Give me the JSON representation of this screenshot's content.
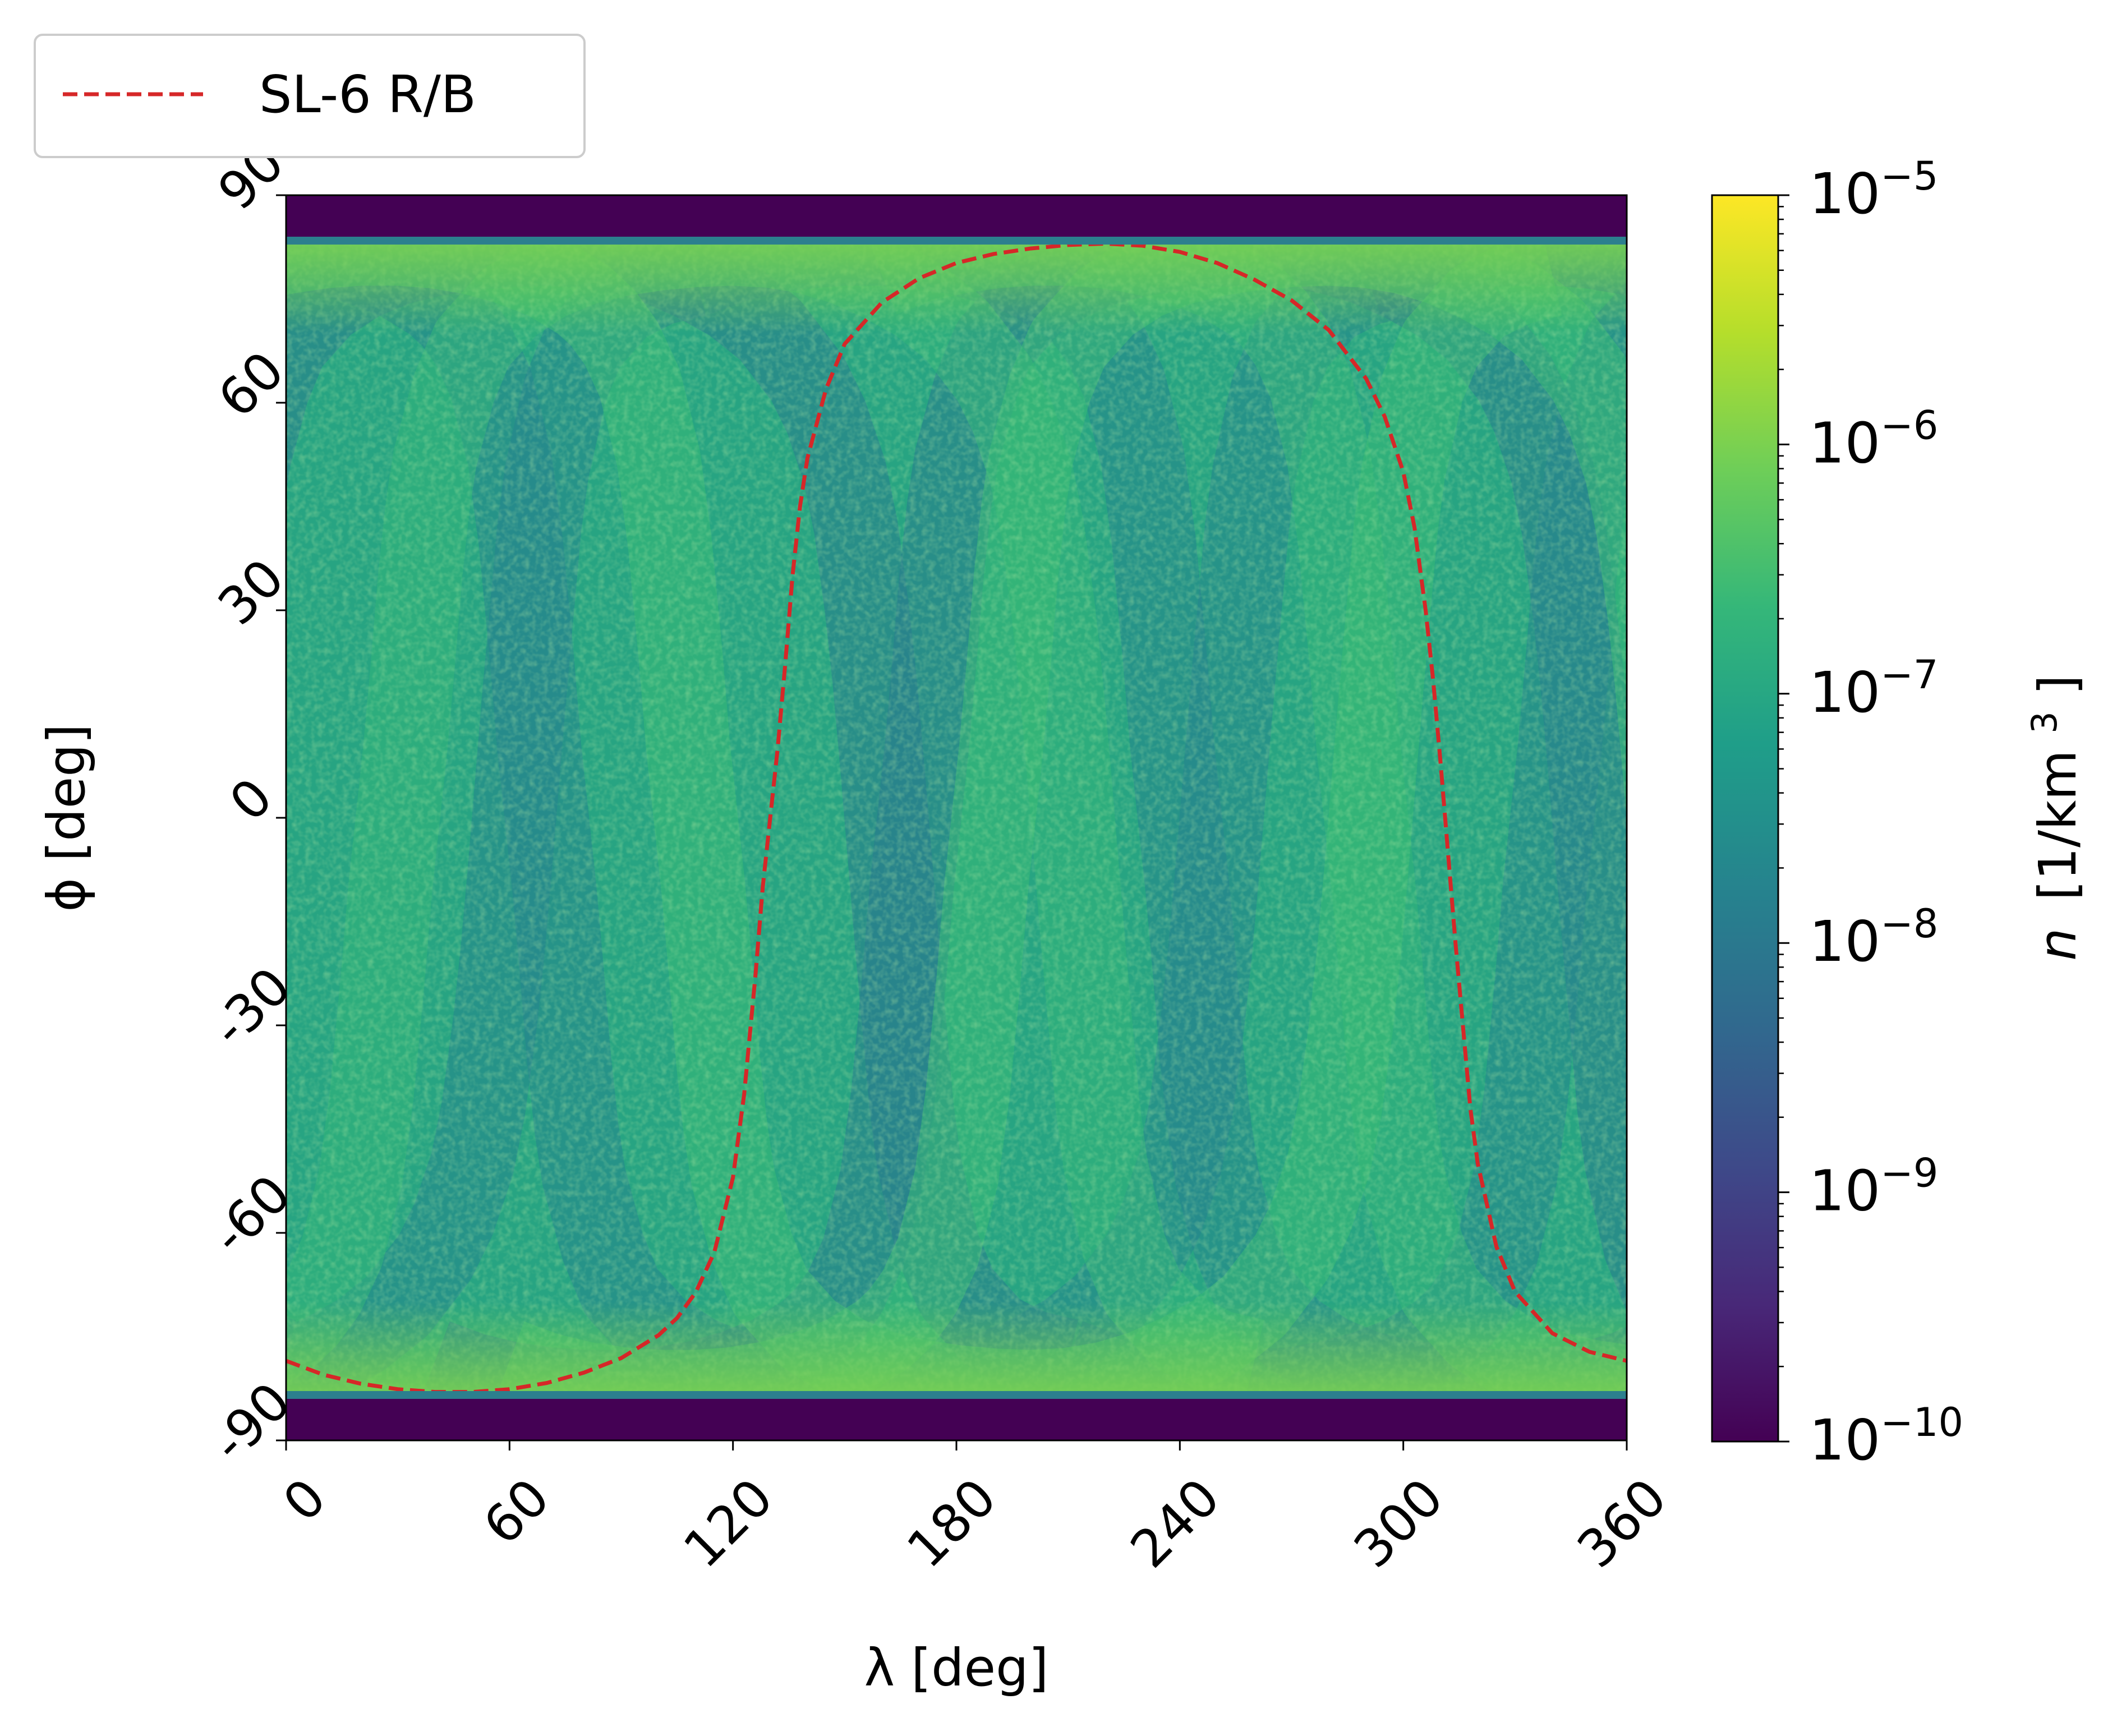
{
  "chart_data": {
    "type": "heatmap",
    "title": "",
    "xlabel": "λ [deg]",
    "ylabel": "ϕ [deg]",
    "xlim": [
      0,
      360
    ],
    "ylim": [
      -90,
      90
    ],
    "xticks": [
      0,
      60,
      120,
      180,
      240,
      300,
      360
    ],
    "xtick_labels": [
      "0",
      "60",
      "120",
      "180",
      "240",
      "300",
      "360"
    ],
    "yticks": [
      -90,
      -60,
      -30,
      0,
      30,
      60,
      90
    ],
    "ytick_labels": [
      "-90",
      "-60",
      "-30",
      "0",
      "30",
      "60",
      "90"
    ],
    "grid": false,
    "colormap": "viridis",
    "colorbar": {
      "label": "n [1/km³]",
      "label_base": "n",
      "label_unit": "[1/km",
      "label_exp": "3",
      "label_close": "]",
      "scale": "log",
      "range": [
        1e-10,
        1e-05
      ],
      "ticks": [
        {
          "base": "10",
          "exp": "−10",
          "value": 1e-10
        },
        {
          "base": "10",
          "exp": "−9",
          "value": 1e-09
        },
        {
          "base": "10",
          "exp": "−8",
          "value": 1e-08
        },
        {
          "base": "10",
          "exp": "−7",
          "value": 1e-07
        },
        {
          "base": "10",
          "exp": "−6",
          "value": 1e-06
        },
        {
          "base": "10",
          "exp": "−5",
          "value": 1e-05
        }
      ]
    },
    "heatmap_description_values": {
      "polar_caps_value": 1e-10,
      "polar_cap_latitude_abs": 84,
      "background_value": 1.5e-07,
      "band_value": 4e-08,
      "edge_max_value": 1e-06
    },
    "series": [
      {
        "name": "SL-6 R/B",
        "style": "dashed",
        "color": "#d62728",
        "x": [
          0,
          10,
          20,
          30,
          40,
          50,
          60,
          70,
          80,
          90,
          100,
          105,
          110,
          115,
          120,
          123,
          126,
          128,
          130,
          132,
          134,
          136,
          138,
          140,
          145,
          150,
          160,
          170,
          180,
          190,
          200,
          210,
          220,
          230,
          240,
          250,
          260,
          270,
          280,
          290,
          295,
          300,
          303,
          306,
          308,
          310,
          312,
          314,
          316,
          318,
          320,
          325,
          330,
          340,
          350,
          360
        ],
        "y": [
          -78.5,
          -80.5,
          -81.8,
          -82.6,
          -83.0,
          -83.0,
          -82.6,
          -81.7,
          -80.2,
          -78.1,
          -74.8,
          -72.3,
          -68.6,
          -62.8,
          -52.0,
          -40.0,
          -23.0,
          -10.0,
          0.0,
          10.0,
          22.0,
          35.0,
          45.0,
          52.0,
          62.0,
          68.5,
          74.5,
          78.0,
          80.2,
          81.5,
          82.3,
          82.8,
          83.0,
          82.7,
          81.8,
          80.2,
          77.8,
          74.8,
          70.5,
          63.5,
          58.0,
          50.0,
          42.0,
          30.0,
          20.0,
          8.0,
          -5.0,
          -18.0,
          -30.0,
          -42.0,
          -50.0,
          -62.0,
          -68.5,
          -74.5,
          -77.2,
          -78.5
        ]
      }
    ],
    "legend": {
      "placement": "top-left, outside plot",
      "entries": [
        "SL-6 R/B"
      ]
    }
  }
}
